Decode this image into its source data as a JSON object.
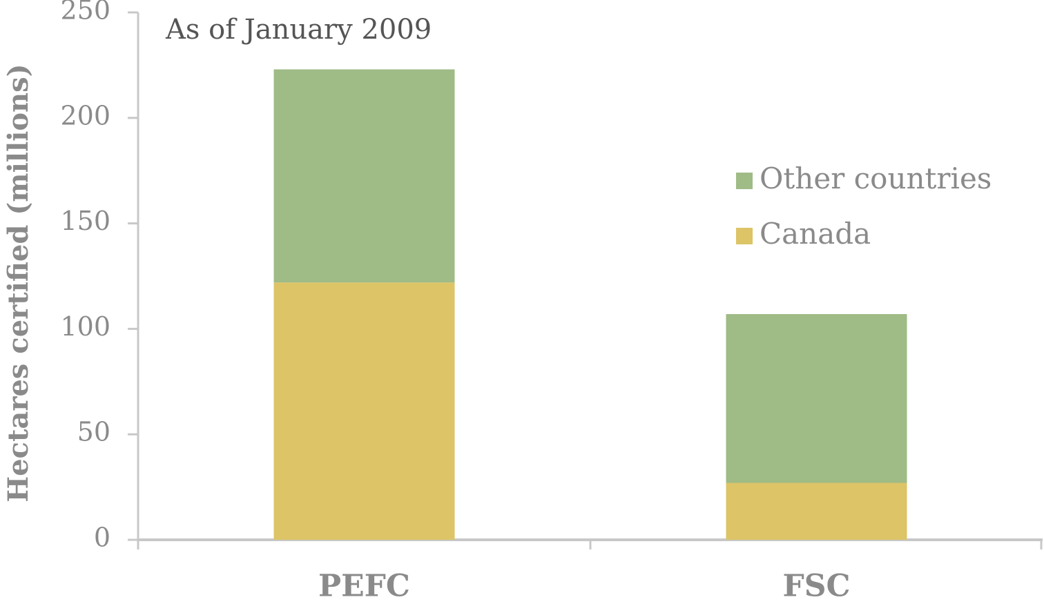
{
  "chart_data": {
    "type": "stacked_bar",
    "annotation": "As of January 2009",
    "y_label": "Hectares certified (millions)",
    "categories": [
      "PEFC",
      "FSC"
    ],
    "series": [
      {
        "name": "Canada",
        "color": "#dcc467",
        "values": [
          122,
          27
        ]
      },
      {
        "name": "Other countries",
        "color": "#9fbb86",
        "values": [
          101,
          80
        ]
      }
    ],
    "ylim": [
      0,
      250
    ],
    "yticks": [
      0,
      50,
      100,
      150,
      200,
      250
    ],
    "legend": "right"
  }
}
